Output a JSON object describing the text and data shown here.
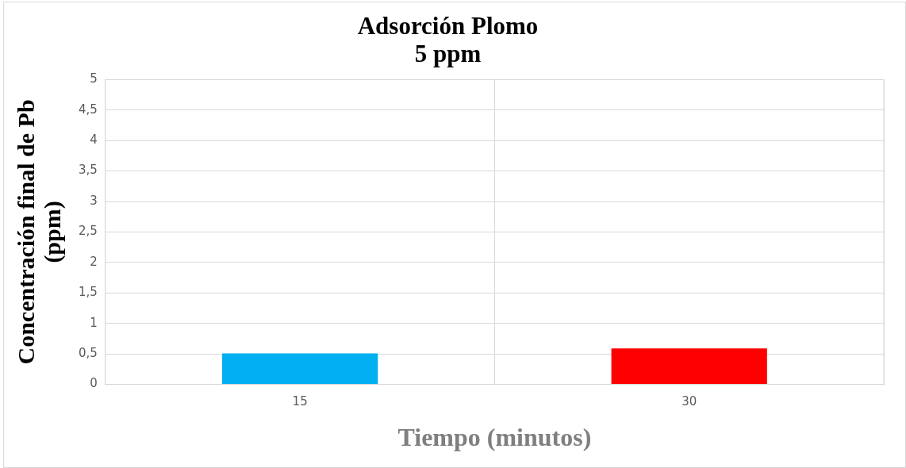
{
  "chart_data": {
    "type": "bar",
    "title": [
      "Adsorción Plomo",
      "5 ppm"
    ],
    "xlabel": "Tiempo (minutos)",
    "ylabel": [
      "Concentración final de Pb",
      "(ppm)"
    ],
    "categories": [
      "15",
      "30"
    ],
    "values": [
      0.51,
      0.59
    ],
    "colors": [
      "#00b0f0",
      "#ff0000"
    ],
    "ylim": [
      0,
      5
    ],
    "yticks": [
      {
        "value": 0,
        "label": "0"
      },
      {
        "value": 0.5,
        "label": "0,5"
      },
      {
        "value": 1,
        "label": "1"
      },
      {
        "value": 1.5,
        "label": "1,5"
      },
      {
        "value": 2,
        "label": "2"
      },
      {
        "value": 2.5,
        "label": "2,5"
      },
      {
        "value": 3,
        "label": "3"
      },
      {
        "value": 3.5,
        "label": "3,5"
      },
      {
        "value": 4,
        "label": "4"
      },
      {
        "value": 4.5,
        "label": "4,5"
      },
      {
        "value": 5,
        "label": "5"
      }
    ],
    "grid": true
  }
}
